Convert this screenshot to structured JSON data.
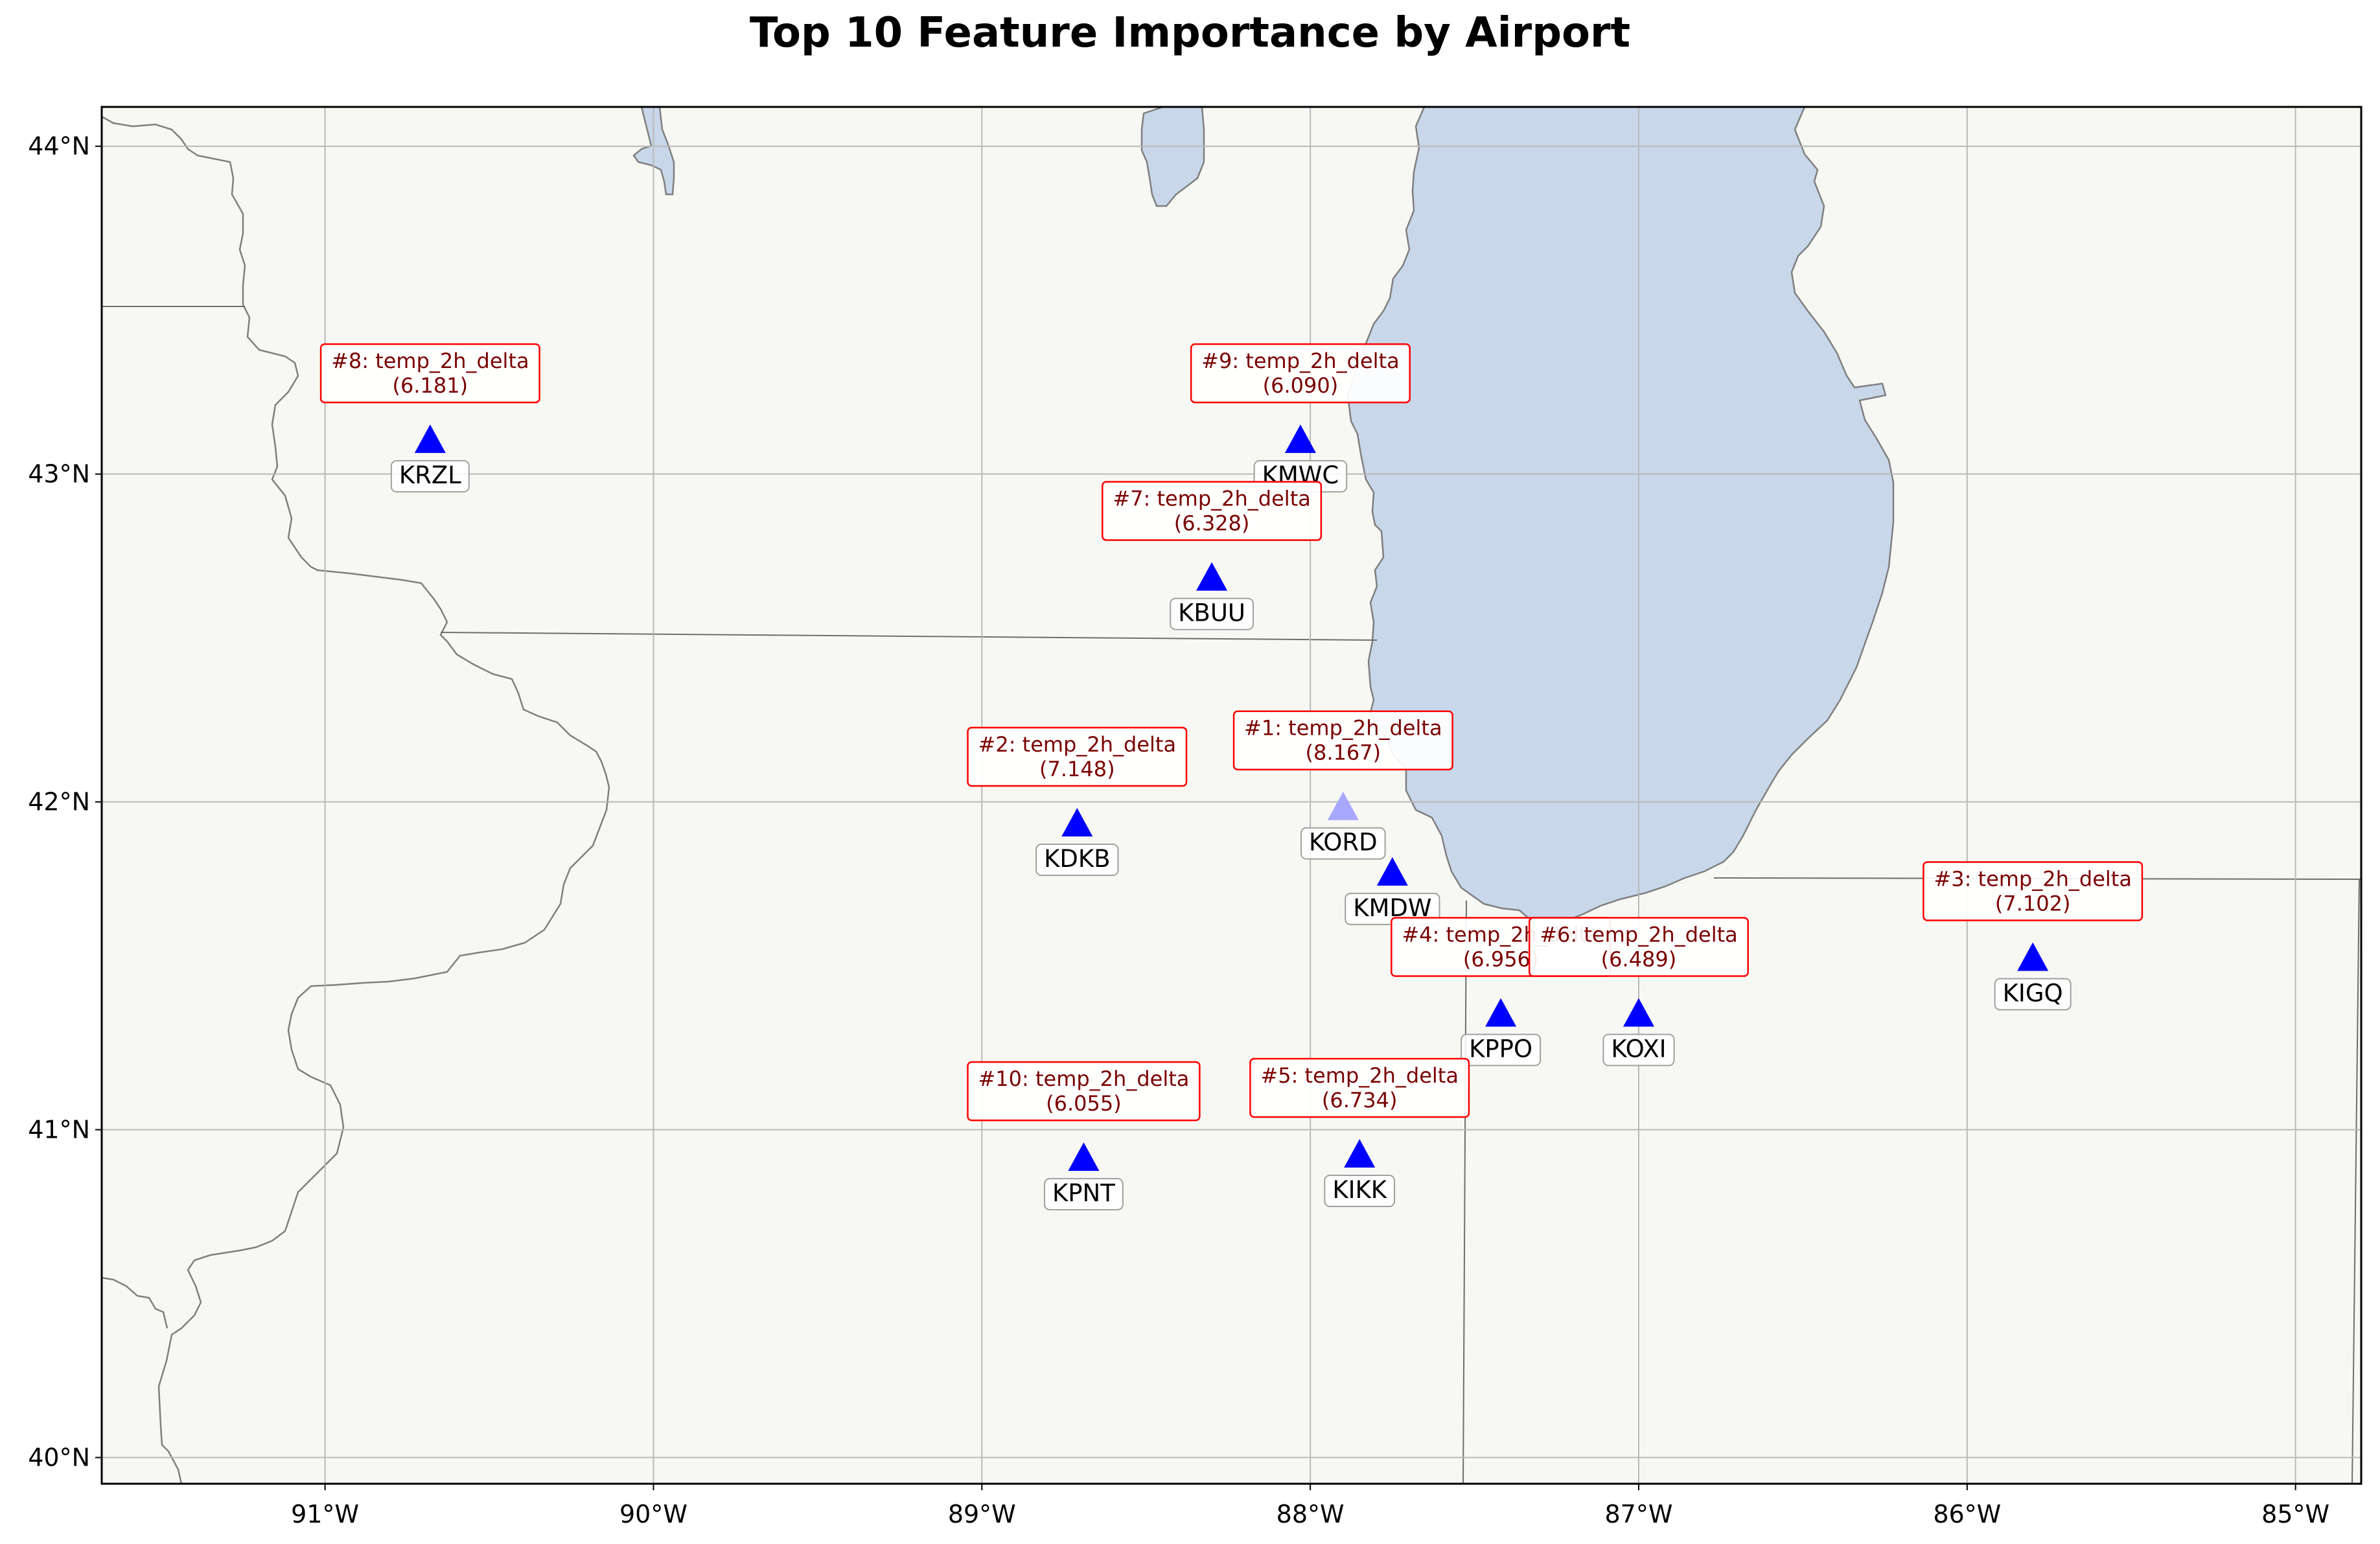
{
  "title": "Top 10 Feature Importance by Airport",
  "colors": {
    "land": "#f7f8f3",
    "water": "#c8d7ea",
    "coast": "#7f7f7f",
    "border": "#6e6e6e",
    "grid": "#b8b8b8",
    "marker": "#0000ff",
    "marker_faded": "#a8a8ff",
    "feature_box": "#ff0000",
    "feature_text": "#7a0000",
    "station_box": "#a0a0a0"
  },
  "map_extent": {
    "lon": [
      -91.68,
      -84.8
    ],
    "lat": [
      39.92,
      44.12
    ]
  },
  "lon_ticks": [
    {
      "lon": -91,
      "label": "91°W"
    },
    {
      "lon": -90,
      "label": "90°W"
    },
    {
      "lon": -89,
      "label": "89°W"
    },
    {
      "lon": -88,
      "label": "88°W"
    },
    {
      "lon": -87,
      "label": "87°W"
    },
    {
      "lon": -86,
      "label": "86°W"
    },
    {
      "lon": -85,
      "label": "85°W"
    }
  ],
  "lat_ticks": [
    {
      "lat": 44,
      "label": "44°N"
    },
    {
      "lat": 43,
      "label": "43°N"
    },
    {
      "lat": 42,
      "label": "42°N"
    },
    {
      "lat": 41,
      "label": "41°N"
    },
    {
      "lat": 40,
      "label": "40°N"
    }
  ],
  "airports": [
    {
      "code": "KRZL",
      "lon": -90.68,
      "lat": 43.1,
      "rank": "#8",
      "feature": "temp_2h_delta",
      "value": "(6.181)"
    },
    {
      "code": "KMWC",
      "lon": -88.03,
      "lat": 43.1,
      "rank": "#9",
      "feature": "temp_2h_delta",
      "value": "(6.090)"
    },
    {
      "code": "KBUU",
      "lon": -88.3,
      "lat": 42.68,
      "rank": "#7",
      "feature": "temp_2h_delta",
      "value": "(6.328)"
    },
    {
      "code": "KDKB",
      "lon": -88.71,
      "lat": 41.93,
      "rank": "#2",
      "feature": "temp_2h_delta",
      "value": "(7.148)"
    },
    {
      "code": "KORD",
      "lon": -87.9,
      "lat": 41.98,
      "rank": "#1",
      "feature": "temp_2h_delta",
      "value": "(8.167)",
      "faded": true
    },
    {
      "code": "KMDW",
      "lon": -87.75,
      "lat": 41.78
    },
    {
      "code": "KIGQ",
      "lon": -85.8,
      "lat": 41.52,
      "rank": "#3",
      "feature": "temp_2h_delta",
      "value": "(7.102)"
    },
    {
      "code": "KPPO",
      "lon": -87.42,
      "lat": 41.35,
      "rank": "#4",
      "feature": "temp_2h_delta",
      "value": "(6.956)"
    },
    {
      "code": "KOXI",
      "lon": -87.0,
      "lat": 41.35,
      "rank": "#6",
      "feature": "temp_2h_delta",
      "value": "(6.489)"
    },
    {
      "code": "KPNT",
      "lon": -88.69,
      "lat": 40.91,
      "rank": "#10",
      "feature": "temp_2h_delta",
      "value": "(6.055)"
    },
    {
      "code": "KIKK",
      "lon": -87.85,
      "lat": 40.92,
      "rank": "#5",
      "feature": "temp_2h_delta",
      "value": "(6.734)"
    }
  ]
}
